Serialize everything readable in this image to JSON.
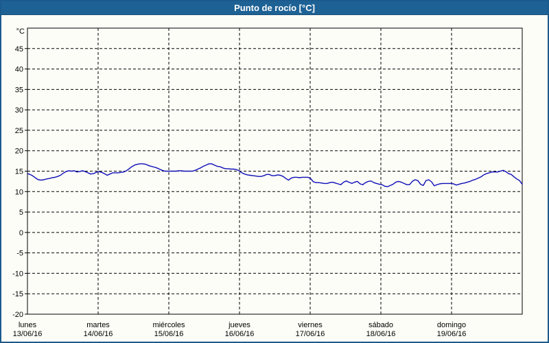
{
  "window": {
    "title": "Punto de rocío [°C]"
  },
  "colors": {
    "titlebar_bg": "#1e6295",
    "titlebar_text": "#ffffff",
    "outer_border": "#1b5a8c",
    "background": "#fcfdf7",
    "plot_frame": "#000000",
    "grid": "#000000",
    "series_line": "#0d0db8"
  },
  "chart_data": {
    "type": "line",
    "title": "Punto de rocío [°C]",
    "ylabel": "°C",
    "ylim": [
      -20,
      50
    ],
    "yticks": [
      45,
      40,
      35,
      30,
      25,
      20,
      15,
      10,
      5,
      0,
      -5,
      -10,
      -15,
      -20
    ],
    "grid": "dashed",
    "legend": "none",
    "x_axis": {
      "days": [
        {
          "name": "lunes",
          "date": "13/06/16"
        },
        {
          "name": "martes",
          "date": "14/06/16"
        },
        {
          "name": "miércoles",
          "date": "15/06/16"
        },
        {
          "name": "jueves",
          "date": "16/06/16"
        },
        {
          "name": "viernes",
          "date": "17/06/16"
        },
        {
          "name": "sábado",
          "date": "18/06/16"
        },
        {
          "name": "domingo",
          "date": "19/06/16"
        }
      ],
      "range_days": [
        0,
        7
      ]
    },
    "series": [
      {
        "name": "Punto de rocío",
        "unit": "°C",
        "color": "#0d0db8",
        "samples_equally_spaced_over_range": true,
        "values": [
          14.4,
          14.2,
          13.8,
          13.3,
          12.9,
          12.8,
          12.9,
          13.1,
          13.2,
          13.4,
          13.5,
          13.7,
          14.0,
          14.5,
          14.9,
          15.1,
          15.0,
          15.1,
          14.8,
          14.9,
          15.1,
          14.9,
          14.6,
          14.3,
          14.4,
          14.7,
          14.9,
          14.7,
          14.4,
          14.0,
          14.3,
          14.6,
          14.6,
          14.6,
          14.7,
          14.8,
          15.1,
          15.6,
          16.1,
          16.5,
          16.7,
          16.8,
          16.8,
          16.7,
          16.4,
          16.2,
          16.0,
          15.8,
          15.5,
          15.2,
          15.0,
          15.0,
          15.0,
          15.0,
          15.0,
          15.1,
          15.1,
          15.0,
          15.0,
          15.0,
          15.0,
          15.2,
          15.5,
          15.8,
          16.2,
          16.5,
          16.8,
          16.8,
          16.5,
          16.2,
          16.1,
          15.8,
          15.6,
          15.6,
          15.5,
          15.5,
          15.4,
          15.1,
          14.6,
          14.3,
          14.1,
          14.0,
          13.9,
          13.8,
          13.7,
          13.7,
          13.9,
          14.2,
          14.2,
          13.9,
          13.9,
          14.1,
          14.0,
          13.7,
          13.2,
          12.8,
          13.3,
          13.5,
          13.5,
          13.4,
          13.5,
          13.5,
          13.5,
          13.2,
          12.4,
          12.2,
          12.2,
          12.1,
          12.0,
          12.0,
          12.2,
          12.3,
          12.1,
          11.9,
          11.7,
          12.3,
          12.6,
          12.3,
          12.0,
          12.3,
          12.5,
          11.9,
          11.7,
          12.2,
          12.5,
          12.6,
          12.2,
          12.0,
          11.8,
          11.7,
          11.3,
          11.2,
          11.5,
          11.8,
          12.3,
          12.5,
          12.3,
          12.0,
          11.7,
          11.7,
          12.5,
          12.9,
          12.7,
          11.8,
          11.5,
          12.7,
          12.9,
          12.4,
          11.4,
          11.7,
          11.9,
          12.0,
          12.0,
          12.0,
          12.0,
          11.9,
          11.6,
          11.8,
          12.0,
          12.1,
          12.3,
          12.5,
          12.8,
          13.0,
          13.3,
          13.6,
          14.1,
          14.4,
          14.6,
          14.8,
          14.8,
          14.8,
          15.0,
          15.2,
          14.9,
          14.4,
          14.2,
          13.6,
          13.1,
          12.7,
          11.8
        ]
      }
    ]
  }
}
